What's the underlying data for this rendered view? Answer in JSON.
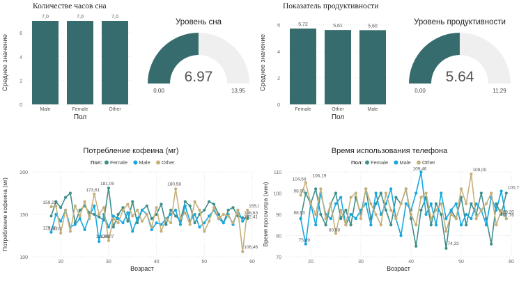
{
  "chart_data": [
    {
      "id": "sleep_hours",
      "type": "bar",
      "title": "Количестве часов сна",
      "xlabel": "Пол",
      "ylabel": "Среднее значение",
      "categories": [
        "Male",
        "Female",
        "Other"
      ],
      "values": [
        7.0,
        7.0,
        7.0
      ],
      "value_labels": [
        "7,0",
        "7,0",
        "7,0"
      ],
      "ylim": [
        0,
        7
      ],
      "yticks": [
        "0",
        "2",
        "4",
        "6"
      ],
      "ytick_values": [
        0,
        2,
        4,
        6
      ],
      "color": "#376C6E"
    },
    {
      "id": "sleep_gauge",
      "type": "gauge",
      "title": "Уровень сна",
      "value": 6.97,
      "value_label": "6.97",
      "min": 0,
      "max": 13.95,
      "min_label": "0,00",
      "max_label": "13,95",
      "color": "#376C6E"
    },
    {
      "id": "productivity",
      "type": "bar",
      "title": "Показатель продуктивности",
      "xlabel": "Пол",
      "ylabel": "Среднее значение",
      "categories": [
        "Female",
        "Other",
        "Male"
      ],
      "values": [
        5.72,
        5.61,
        5.6
      ],
      "value_labels": [
        "5,72",
        "5,61",
        "5,60"
      ],
      "ylim": [
        0,
        6.3
      ],
      "yticks": [
        "0",
        "2",
        "4",
        "6"
      ],
      "ytick_values": [
        0,
        2,
        4,
        6
      ],
      "color": "#376C6E"
    },
    {
      "id": "productivity_gauge",
      "type": "gauge",
      "title": "Уровень продуктивности",
      "value": 5.64,
      "value_label": "5.64",
      "min": 0,
      "max": 11.29,
      "min_label": "0,00",
      "max_label": "11,29",
      "color": "#376C6E"
    },
    {
      "id": "caffeine",
      "type": "line",
      "title": "Потребление кофеина (мг)",
      "xlabel": "Возраст",
      "ylabel": "Потребление кофеина (мг)",
      "legend_title": "Пол:",
      "xlim": [
        14,
        60
      ],
      "ylim": [
        100,
        200
      ],
      "xticks": [
        "20",
        "30",
        "40",
        "50",
        "60"
      ],
      "xtick_values": [
        20,
        30,
        40,
        50,
        60
      ],
      "yticks": [
        "100",
        "150",
        "200"
      ],
      "ytick_values": [
        100,
        150,
        200
      ],
      "x": [
        18,
        19,
        20,
        21,
        22,
        23,
        24,
        25,
        26,
        27,
        28,
        29,
        30,
        31,
        32,
        33,
        34,
        35,
        36,
        37,
        38,
        39,
        40,
        41,
        42,
        43,
        44,
        45,
        46,
        47,
        48,
        49,
        50,
        51,
        52,
        53,
        54,
        55,
        56,
        57,
        58,
        59
      ],
      "series": [
        {
          "name": "Female",
          "color": "#3E8E8A",
          "values": [
            148,
            165,
            158,
            170,
            175,
            140,
            155,
            160,
            152,
            150,
            147,
            143,
            181,
            135,
            150,
            158,
            142,
            165,
            140,
            155,
            160,
            145,
            150,
            162,
            138,
            155,
            148,
            143,
            165,
            160,
            140,
            150,
            155,
            165,
            162,
            150,
            140,
            155,
            158,
            148,
            146,
            145
          ]
        },
        {
          "name": "Male",
          "color": "#15A7E0",
          "values": [
            129,
            150,
            142,
            155,
            135,
            138,
            145,
            132,
            148,
            160,
            118,
            150,
            135,
            148,
            145,
            140,
            152,
            130,
            145,
            155,
            150,
            132,
            140,
            138,
            145,
            150,
            155,
            138,
            160,
            142,
            150,
            135,
            140,
            148,
            155,
            145,
            140,
            150,
            138,
            155,
            142,
            148
          ]
        },
        {
          "name": "Other",
          "color": "#C5B07C",
          "values": [
            159,
            160,
            128,
            155,
            130,
            160,
            148,
            165,
            145,
            174,
            150,
            158,
            119,
            145,
            140,
            155,
            162,
            148,
            155,
            142,
            150,
            135,
            158,
            130,
            145,
            140,
            180,
            145,
            152,
            138,
            165,
            155,
            130,
            142,
            158,
            145,
            150,
            148,
            140,
            155,
            106,
            155
          ]
        }
      ],
      "annotations": [
        {
          "label": "159,22",
          "x": 18,
          "y": 159.22
        },
        {
          "label": "128,07",
          "x": 19,
          "y": 128.07
        },
        {
          "label": "129,08",
          "x": 18,
          "y": 129.08
        },
        {
          "label": "173,61",
          "x": 27,
          "y": 173.61
        },
        {
          "label": "181,05",
          "x": 30,
          "y": 181.05
        },
        {
          "label": "118,89",
          "x": 29,
          "y": 118.89
        },
        {
          "label": "119,07",
          "x": 30,
          "y": 119.07
        },
        {
          "label": "180,58",
          "x": 44,
          "y": 180.58
        },
        {
          "label": "155,00",
          "x": 59,
          "y": 155.0
        },
        {
          "label": "146,63",
          "x": 58,
          "y": 146.63
        },
        {
          "label": "142,41",
          "x": 58,
          "y": 142.41
        },
        {
          "label": "106,46",
          "x": 58,
          "y": 106.46
        }
      ]
    },
    {
      "id": "phone_time",
      "type": "line",
      "title": "Время использования телефона",
      "xlabel": "Возраст",
      "ylabel": "Время просмотра (мин)",
      "legend_title": "Пол:",
      "xlim": [
        15,
        60
      ],
      "ylim": [
        70,
        110
      ],
      "xticks": [
        "20",
        "30",
        "40",
        "50",
        "60"
      ],
      "xtick_values": [
        20,
        30,
        40,
        50,
        60
      ],
      "yticks": [
        "70",
        "80",
        "90",
        "100",
        "110"
      ],
      "ytick_values": [
        70,
        80,
        90,
        100,
        110
      ],
      "x": [
        18,
        19,
        20,
        21,
        22,
        23,
        24,
        25,
        26,
        27,
        28,
        29,
        30,
        31,
        32,
        33,
        34,
        35,
        36,
        37,
        38,
        39,
        40,
        41,
        42,
        43,
        44,
        45,
        46,
        47,
        48,
        49,
        50,
        51,
        52,
        53,
        54,
        55,
        56,
        57,
        58,
        59
      ],
      "series": [
        {
          "name": "Female",
          "color": "#3E8E8A",
          "values": [
            88,
            100,
            95,
            102,
            90,
            85,
            95,
            100,
            88,
            92,
            85,
            98,
            90,
            102,
            88,
            95,
            100,
            92,
            85,
            98,
            95,
            102,
            88,
            75,
            92,
            98,
            85,
            95,
            90,
            74,
            92,
            88,
            98,
            85,
            95,
            90,
            100,
            88,
            76,
            95,
            90,
            100
          ]
        },
        {
          "name": "Male",
          "color": "#15A7E0",
          "values": [
            88,
            76,
            95,
            85,
            100,
            90,
            88,
            95,
            98,
            85,
            90,
            88,
            92,
            95,
            85,
            100,
            90,
            95,
            102,
            88,
            80,
            95,
            92,
            100,
            110,
            90,
            95,
            85,
            100,
            88,
            92,
            95,
            85,
            90,
            88,
            95,
            92,
            85,
            98,
            92,
            101,
            88
          ]
        },
        {
          "name": "Other",
          "color": "#C5B07C",
          "values": [
            99,
            105,
            95,
            90,
            102,
            88,
            95,
            81,
            92,
            85,
            98,
            100,
            88,
            102,
            95,
            90,
            85,
            100,
            92,
            88,
            95,
            102,
            90,
            85,
            98,
            100,
            88,
            92,
            95,
            82,
            90,
            88,
            102,
            95,
            109,
            88,
            92,
            95,
            100,
            85,
            92,
            88
          ]
        }
      ],
      "annotations": [
        {
          "label": "104,59",
          "x": 18,
          "y": 104.59
        },
        {
          "label": "98,99",
          "x": 18,
          "y": 98.99
        },
        {
          "label": "88,93",
          "x": 18,
          "y": 88.93
        },
        {
          "label": "75,89",
          "x": 19,
          "y": 75.89
        },
        {
          "label": "106,19",
          "x": 22,
          "y": 106.19
        },
        {
          "label": "80,58",
          "x": 25,
          "y": 80.58
        },
        {
          "label": "109,46",
          "x": 42,
          "y": 109.46
        },
        {
          "label": "74,33",
          "x": 47,
          "y": 74.33
        },
        {
          "label": "109,00",
          "x": 52,
          "y": 109.0
        },
        {
          "label": "100,73",
          "x": 59,
          "y": 100.73
        },
        {
          "label": "89,20",
          "x": 58,
          "y": 89.2
        },
        {
          "label": "87,76",
          "x": 58,
          "y": 87.76
        }
      ]
    }
  ]
}
